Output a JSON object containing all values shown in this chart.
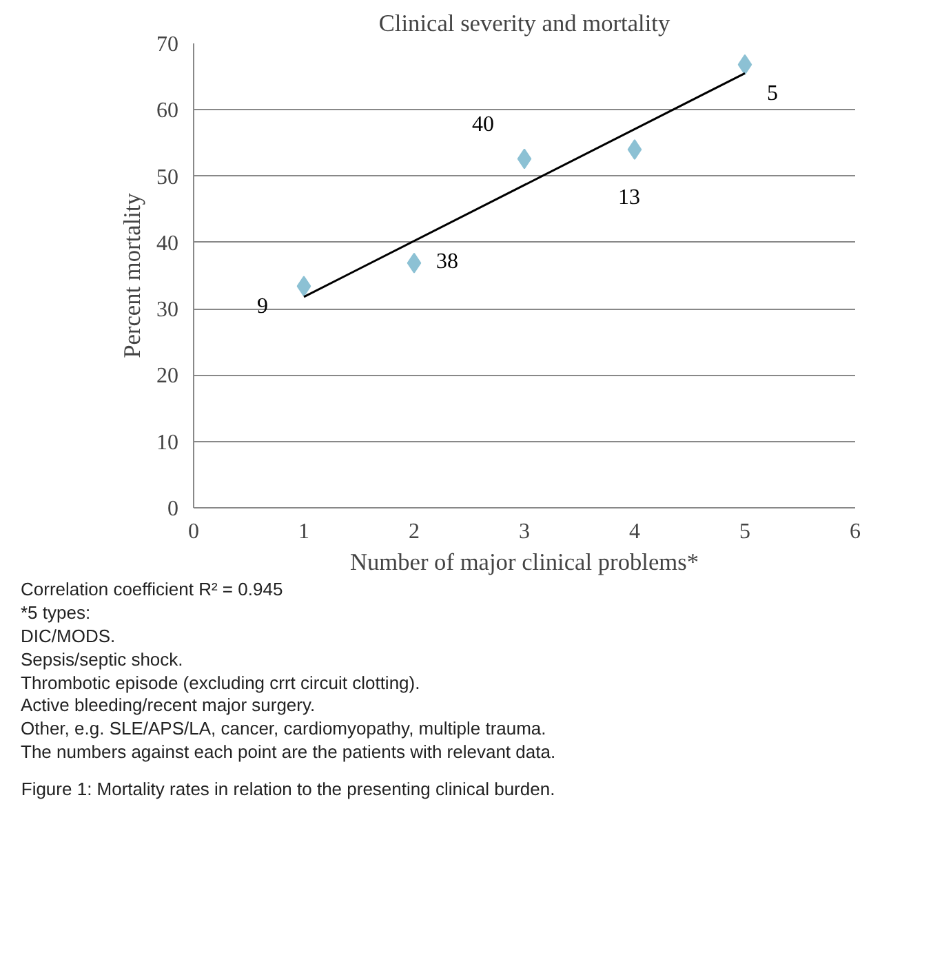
{
  "chart_data": {
    "type": "scatter",
    "title": "Clinical severity and mortality",
    "xlabel": "Number of major clinical problems*",
    "ylabel": "Percent mortality",
    "series": [
      {
        "color": "#8cc1d4",
        "marker": "diamond",
        "x": [
          1,
          2,
          3,
          4,
          5
        ],
        "values": [
          33.4,
          36.9,
          52.6,
          54.0,
          66.8
        ]
      },
      {
        "type": "line",
        "color": "#000000",
        "marker": "none",
        "line_style": "solid",
        "x": [
          1,
          5
        ],
        "values": [
          31.8,
          65.5
        ]
      }
    ],
    "xlim": [
      0,
      6
    ],
    "xticks": [
      0,
      1,
      2,
      3,
      4,
      5,
      6
    ],
    "ylim": [
      0,
      70
    ],
    "yticks": [
      0,
      10,
      20,
      30,
      40,
      50,
      60,
      70
    ],
    "grid": "y",
    "annotations": [
      {
        "text": "9",
        "x": 1,
        "y": 33.4
      },
      {
        "text": "38",
        "x": 2,
        "y": 36.9
      },
      {
        "text": "40",
        "x": 3,
        "y": 52.6
      },
      {
        "text": "13",
        "x": 4,
        "y": 54.0
      },
      {
        "text": "5",
        "x": 5,
        "y": 66.8
      },
      "Correlation coefficient R² = 0.945",
      "*5 types:",
      "DIC/MODS.",
      "Sepsis/septic shock.",
      "Thrombotic episode (excluding crrt circuit clotting).",
      "Active bleeding/recent major surgery.",
      "Other, e.g. SLE/APS/LA, cancer, cardiomyopathy, multiple trauma.",
      "The numbers against each point are the patients with relevant data.",
      "Figure 1: Mortality rates in relation to the presenting clinical burden."
    ]
  }
}
